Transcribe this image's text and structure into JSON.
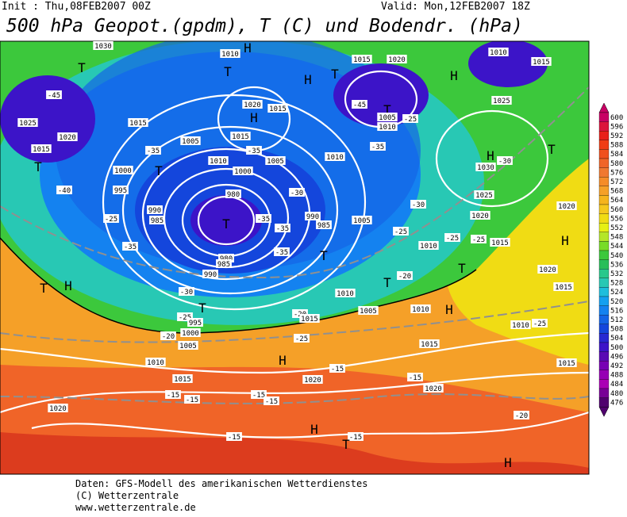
{
  "header": {
    "init": "Init : Thu,08FEB2007 00Z",
    "valid": "Valid: Mon,12FEB2007 18Z",
    "title": "500 hPa Geopot.(gpdm), T (C) und Bodendr. (hPa)"
  },
  "colorbar": {
    "levels": [
      600,
      596,
      592,
      588,
      584,
      580,
      576,
      572,
      568,
      564,
      560,
      556,
      552,
      548,
      544,
      540,
      536,
      532,
      528,
      524,
      520,
      516,
      512,
      508,
      504,
      500,
      496,
      492,
      488,
      484,
      480,
      476
    ],
    "colors": [
      "#c80064",
      "#dc143c",
      "#e8201a",
      "#f03c14",
      "#f0501e",
      "#f06428",
      "#f07830",
      "#f58c28",
      "#f5a028",
      "#f5b41e",
      "#f5c81e",
      "#f0dc14",
      "#e6f014",
      "#b4e628",
      "#78dc28",
      "#3cc83c",
      "#28be5a",
      "#28c88c",
      "#28c8b4",
      "#1ebedc",
      "#14a0f0",
      "#1482f0",
      "#1464e6",
      "#1446dc",
      "#2828d2",
      "#3c14c8",
      "#5a0ab4",
      "#7800b4",
      "#9600b4",
      "#aa00b4",
      "#780096",
      "#50006e"
    ]
  },
  "map_labels": [
    "1030",
    "1010",
    "H",
    "T",
    "T",
    "H",
    "T",
    "1015",
    "1020",
    "H",
    "1010",
    "1015",
    "-45",
    "1025",
    "1020",
    "1015",
    "1020",
    "H",
    "1015",
    "-45",
    "T",
    "1005",
    "1010",
    "-25",
    "1025",
    "1015",
    "T",
    "1005",
    "1015",
    "-35",
    "-35",
    "1010",
    "1005",
    "1010",
    "-35",
    "H",
    "1030",
    "-30",
    "T",
    "1000",
    "T",
    "1000",
    "995",
    "-40",
    "980",
    "-30",
    "1025",
    "990",
    "985",
    "T",
    "-35",
    "-35",
    "990",
    "985",
    "T",
    "1005",
    "-30",
    "1020",
    "1020",
    "-25",
    "-25",
    "-25",
    "-25",
    "1015",
    "H",
    "-35",
    "-35",
    "980",
    "985",
    "990",
    "1010",
    "T",
    "1020",
    "T",
    "H",
    "-20",
    "T",
    "1010",
    "-30",
    "1005",
    "1010",
    "H",
    "1015",
    "T",
    "-25",
    "995",
    "-20",
    "1015",
    "1000",
    "-20",
    "-25",
    "1005",
    "1010",
    "-25",
    "1015",
    "1010",
    "H",
    "-15",
    "1015",
    "1015",
    "1020",
    "-15",
    "1020",
    "-15",
    "-15",
    "-15",
    "-15",
    "-20",
    "1020",
    "H",
    "-15",
    "T",
    "-15",
    "H"
  ],
  "footer": [
    "Daten: GFS-Modell des amerikanischen Wetterdienstes",
    "(C) Wetterzentrale",
    "www.wetterzentrale.de"
  ]
}
